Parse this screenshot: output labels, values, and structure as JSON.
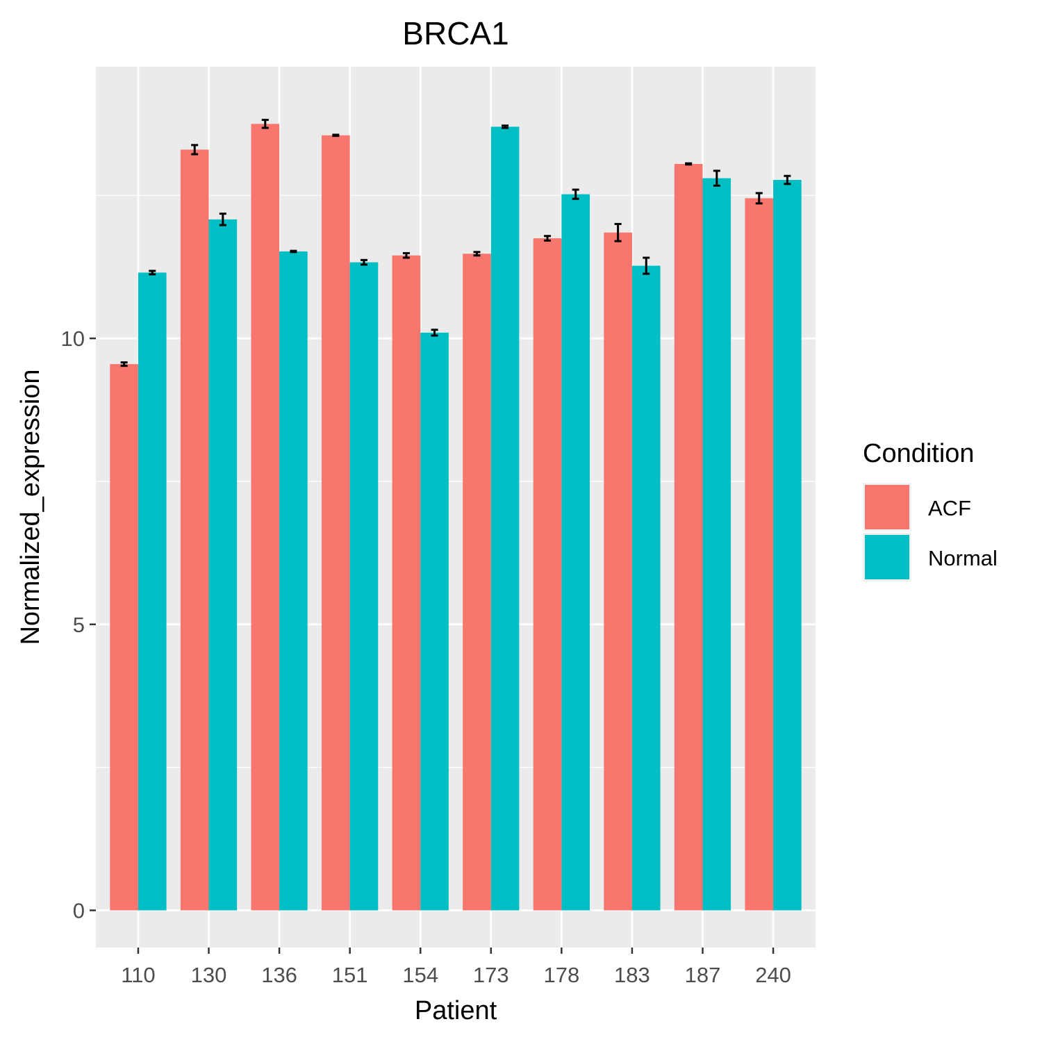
{
  "chart_data": {
    "type": "bar",
    "title": "BRCA1",
    "xlabel": "Patient",
    "ylabel": "Normalized_expression",
    "categories": [
      "110",
      "130",
      "136",
      "151",
      "154",
      "173",
      "178",
      "183",
      "187",
      "240"
    ],
    "series": [
      {
        "name": "ACF",
        "color": "#F8766D",
        "values": [
          9.55,
          13.3,
          13.75,
          13.55,
          11.45,
          11.48,
          11.75,
          11.85,
          13.05,
          12.45
        ],
        "errors": [
          0.03,
          0.08,
          0.07,
          0.01,
          0.04,
          0.03,
          0.04,
          0.15,
          0.01,
          0.09
        ]
      },
      {
        "name": "Normal",
        "color": "#00BFC4",
        "values": [
          11.15,
          12.08,
          11.52,
          11.33,
          10.1,
          13.7,
          12.52,
          11.27,
          12.8,
          12.77
        ],
        "errors": [
          0.03,
          0.1,
          0.01,
          0.04,
          0.05,
          0.02,
          0.08,
          0.14,
          0.13,
          0.07
        ]
      }
    ],
    "yticks": [
      0,
      5,
      10
    ],
    "ylim": [
      -0.65,
      14.75
    ],
    "grid": true,
    "legend": {
      "title": "Condition",
      "position": "right"
    }
  }
}
